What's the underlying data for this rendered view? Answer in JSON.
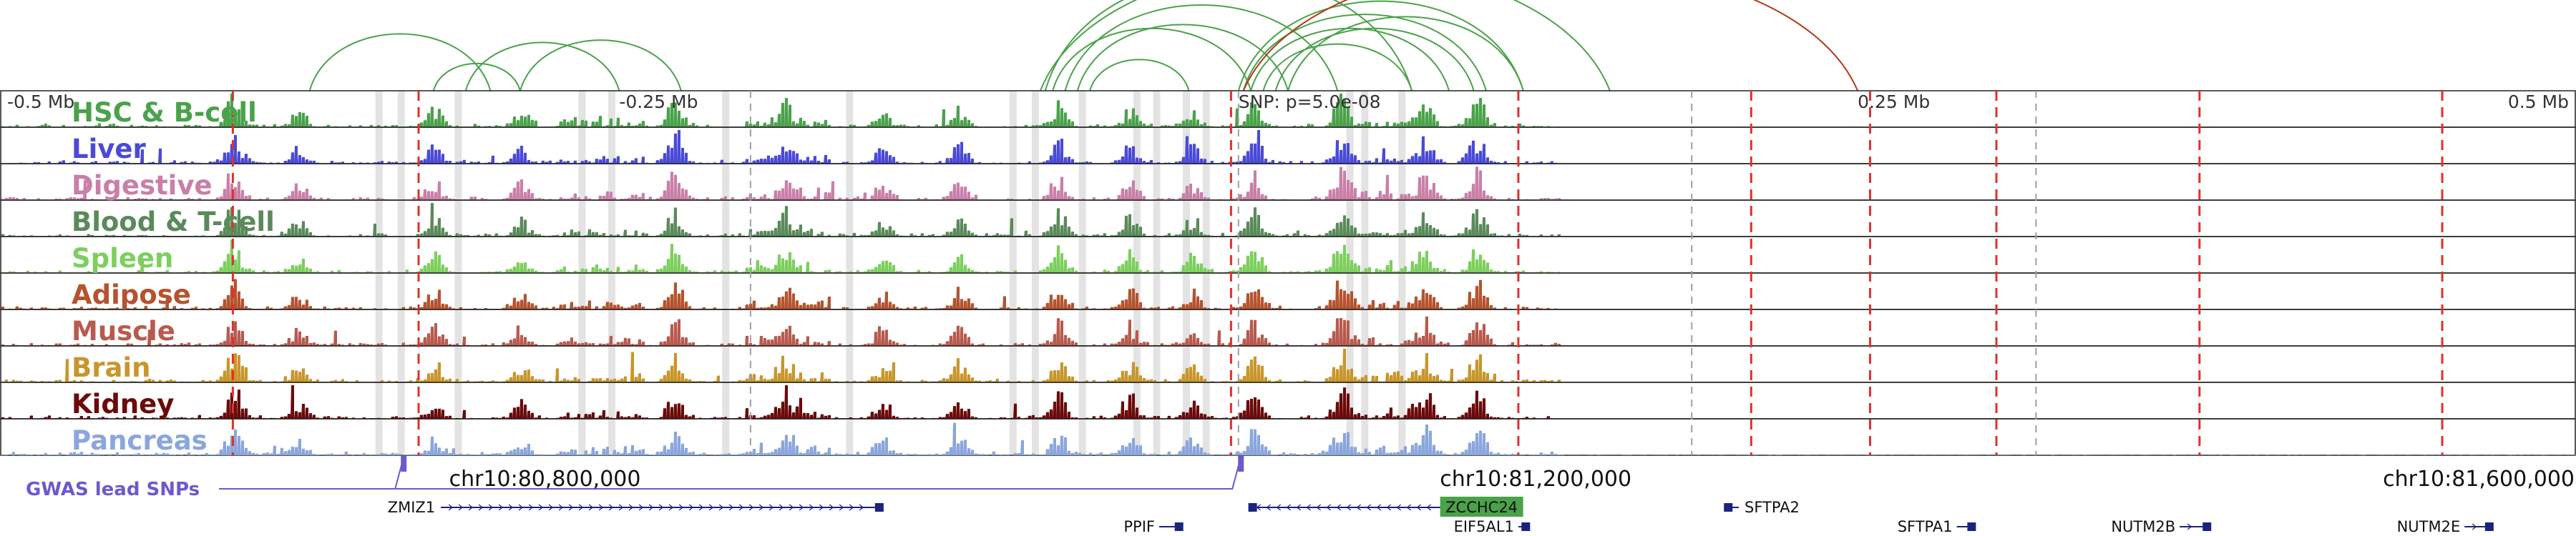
{
  "chart_data": {
    "type": "area",
    "genome_browser": true,
    "chromosome": "chr10",
    "region": [
      80580000,
      81620000
    ],
    "coordinate_labels": [
      {
        "pos": 80800000,
        "text": "chr10:80,800,000"
      },
      {
        "pos": 81200000,
        "text": "chr10:81,200,000"
      },
      {
        "pos": 81600000,
        "text": "chr10:81,600,000"
      }
    ],
    "relative_axis": [
      {
        "pos": 80580000,
        "text": "-0.5 Mb"
      },
      {
        "pos": 80830000,
        "text": "-0.25 Mb"
      },
      {
        "pos": 81080000,
        "text": "SNP: p=5.0e-08"
      },
      {
        "pos": 81330000,
        "text": "0.25 Mb"
      },
      {
        "pos": 81580000,
        "text": "0.5 Mb"
      }
    ],
    "tracks": [
      {
        "name": "HSC & B-cell",
        "color": "#4aa24a",
        "seed": 11
      },
      {
        "name": "Liver",
        "color": "#4a4ad8",
        "seed": 23
      },
      {
        "name": "Digestive",
        "color": "#c97fa8",
        "seed": 37
      },
      {
        "name": "Blood & T-cell",
        "color": "#5a8a5a",
        "seed": 41
      },
      {
        "name": "Spleen",
        "color": "#7ccf5c",
        "seed": 53
      },
      {
        "name": "Adipose",
        "color": "#b5532e",
        "seed": 67
      },
      {
        "name": "Muscle",
        "color": "#b85a4e",
        "seed": 71
      },
      {
        "name": "Brain",
        "color": "#c8962a",
        "seed": 83
      },
      {
        "name": "Kidney",
        "color": "#6b0a0a",
        "seed": 97
      },
      {
        "name": "Pancreas",
        "color": "#8aa6dd",
        "seed": 101
      }
    ],
    "peak_hotspots": [
      {
        "pos": 80674000,
        "strength": 0.9
      },
      {
        "pos": 80700000,
        "strength": 0.45
      },
      {
        "pos": 80755000,
        "strength": 0.55
      },
      {
        "pos": 80790000,
        "strength": 0.5
      },
      {
        "pos": 80852000,
        "strength": 0.75
      },
      {
        "pos": 80897000,
        "strength": 0.6
      },
      {
        "pos": 80936000,
        "strength": 0.5
      },
      {
        "pos": 80967000,
        "strength": 0.55
      },
      {
        "pos": 81007000,
        "strength": 0.65
      },
      {
        "pos": 81036000,
        "strength": 0.6
      },
      {
        "pos": 81061000,
        "strength": 0.5
      },
      {
        "pos": 81086000,
        "strength": 0.7
      },
      {
        "pos": 81121000,
        "strength": 0.85
      },
      {
        "pos": 81155000,
        "strength": 0.75
      },
      {
        "pos": 81176000,
        "strength": 0.8
      }
    ],
    "hotspot_spread": [
      {
        "from": 80805000,
        "to": 80840000,
        "strength": 0.35
      },
      {
        "from": 80880000,
        "to": 80915000,
        "strength": 0.4
      },
      {
        "from": 81120000,
        "to": 81150000,
        "strength": 0.35
      }
    ],
    "gray_highlights": [
      80733000,
      80742000,
      80765000,
      80815000,
      80827000,
      80873000,
      80923000,
      80989000,
      80998000,
      81017000,
      81039000,
      81047000,
      81059000,
      81067000,
      81125000,
      81131000,
      81146000
    ],
    "red_dashed_lines": [
      80674000,
      80749000,
      81077000,
      81193000,
      81287000,
      81335000,
      81386000,
      81468000,
      81566000
    ],
    "gray_dashed_lines": [
      80883000,
      81080000,
      81263000,
      81402000
    ],
    "gwas_lead_snps": {
      "label": "GWAS lead SNPs",
      "positions": [
        80743000,
        81081000
      ]
    },
    "loops": [
      {
        "from": 80705000,
        "to": 80778000,
        "color": "#4aa24a"
      },
      {
        "from": 80755000,
        "to": 80790000,
        "color": "#4aa24a"
      },
      {
        "from": 80768000,
        "to": 80830000,
        "color": "#4aa24a"
      },
      {
        "from": 80790000,
        "to": 80855000,
        "color": "#4aa24a"
      },
      {
        "from": 81000000,
        "to": 81230000,
        "color": "#4aa24a"
      },
      {
        "from": 81002000,
        "to": 81150000,
        "color": "#4aa24a"
      },
      {
        "from": 81005000,
        "to": 81085000,
        "color": "#4aa24a"
      },
      {
        "from": 81010000,
        "to": 81120000,
        "color": "#4aa24a"
      },
      {
        "from": 81015000,
        "to": 81100000,
        "color": "#4aa24a"
      },
      {
        "from": 81020000,
        "to": 81060000,
        "color": "#4aa24a"
      },
      {
        "from": 81080000,
        "to": 81195000,
        "color": "#4aa24a"
      },
      {
        "from": 81082000,
        "to": 81180000,
        "color": "#4aa24a"
      },
      {
        "from": 81085000,
        "to": 81165000,
        "color": "#4aa24a"
      },
      {
        "from": 81090000,
        "to": 81150000,
        "color": "#4aa24a"
      },
      {
        "from": 81095000,
        "to": 81175000,
        "color": "#4aa24a"
      },
      {
        "from": 81100000,
        "to": 81195000,
        "color": "#4aa24a"
      },
      {
        "from": 81082000,
        "to": 81330000,
        "color": "#b03a1a"
      }
    ],
    "genes": [
      {
        "name": "ZMIZ1",
        "start": 80758000,
        "end": 80935000,
        "strand": "+",
        "row": 0
      },
      {
        "name": "PPIF",
        "start": 81048000,
        "end": 81056000,
        "strand": "+",
        "row": 1
      },
      {
        "name": "ZCCHC24",
        "start": 81084000,
        "end": 81162000,
        "strand": "-",
        "row": 0,
        "highlight_color": "#4aa24a",
        "label_color": "#ffffff"
      },
      {
        "name": "EIF5AL1",
        "start": 81193000,
        "end": 81196000,
        "strand": "+",
        "row": 1
      },
      {
        "name": "SFTPA2",
        "start": 81276000,
        "end": 81282000,
        "strand": "-",
        "row": 0
      },
      {
        "name": "SFTPA1",
        "start": 81370000,
        "end": 81376000,
        "strand": "+",
        "row": 1
      },
      {
        "name": "NUTM2B",
        "start": 81460000,
        "end": 81471000,
        "strand": "+",
        "row": 1
      },
      {
        "name": "NUTM2E",
        "start": 81575000,
        "end": 81585000,
        "strand": "+",
        "row": 1
      }
    ]
  }
}
